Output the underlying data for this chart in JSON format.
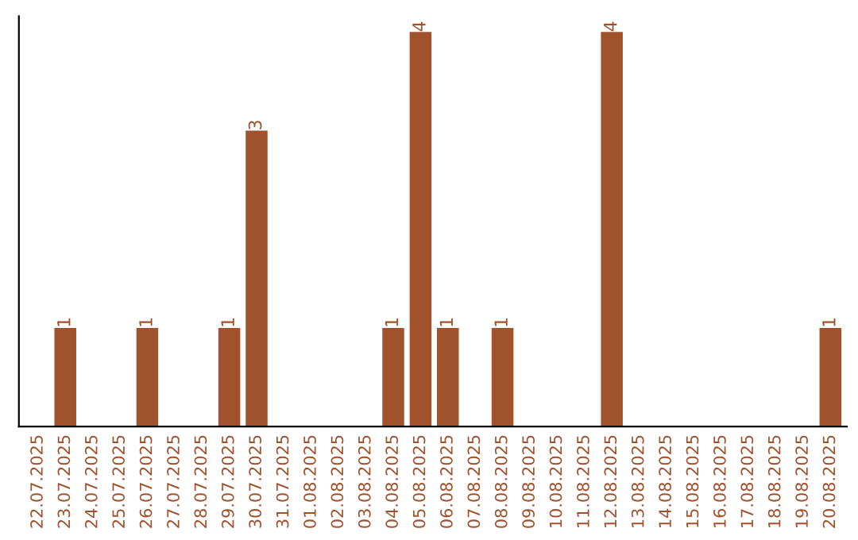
{
  "chart_data": {
    "type": "bar",
    "categories": [
      "22.07.2025",
      "23.07.2025",
      "24.07.2025",
      "25.07.2025",
      "26.07.2025",
      "27.07.2025",
      "28.07.2025",
      "29.07.2025",
      "30.07.2025",
      "31.07.2025",
      "01.08.2025",
      "02.08.2025",
      "03.08.2025",
      "04.08.2025",
      "05.08.2025",
      "06.08.2025",
      "07.08.2025",
      "08.08.2025",
      "09.08.2025",
      "10.08.2025",
      "11.08.2025",
      "12.08.2025",
      "13.08.2025",
      "14.08.2025",
      "15.08.2025",
      "16.08.2025",
      "17.08.2025",
      "18.08.2025",
      "19.08.2025",
      "20.08.2025"
    ],
    "values": [
      0,
      1,
      0,
      0,
      1,
      0,
      0,
      1,
      3,
      0,
      0,
      0,
      0,
      1,
      4,
      1,
      0,
      1,
      0,
      0,
      0,
      4,
      0,
      0,
      0,
      0,
      0,
      0,
      0,
      1
    ],
    "value_labels": [
      null,
      "1",
      null,
      null,
      "1",
      null,
      null,
      "1",
      "3",
      null,
      null,
      null,
      null,
      "1",
      "4",
      "1",
      null,
      "1",
      null,
      null,
      null,
      "4",
      null,
      null,
      null,
      null,
      null,
      null,
      null,
      "1"
    ],
    "color": "#a0522d",
    "tick_labels": "x",
    "grid": false
  }
}
